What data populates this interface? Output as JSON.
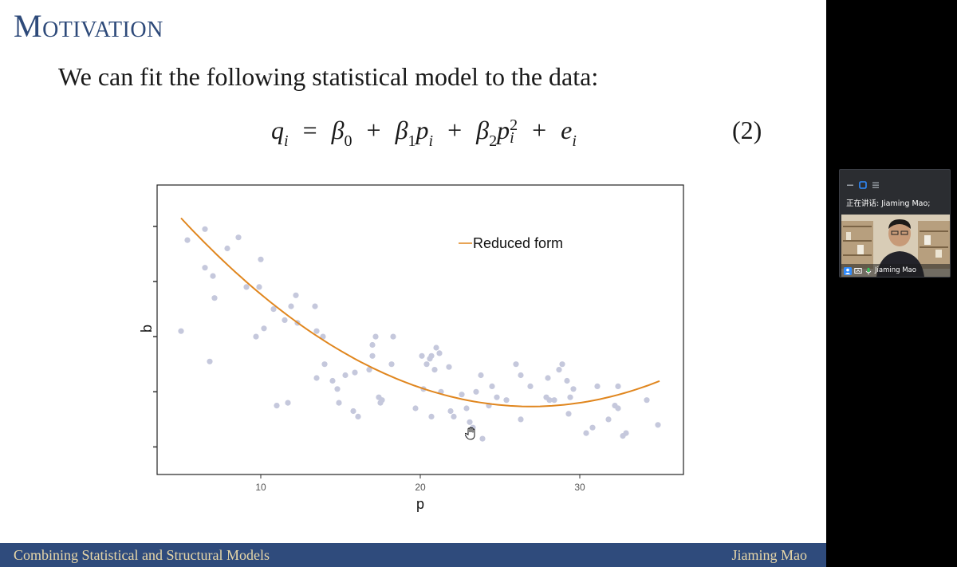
{
  "slide": {
    "title": "Motivation",
    "intro": "We can fit the following statistical model to the data:",
    "equation": {
      "lhs_var": "q",
      "lhs_sub": "i",
      "eq": "=",
      "b0": "β",
      "b0_sub": "0",
      "plus": "+",
      "b1": "β",
      "b1_sub": "1",
      "p1": "p",
      "p1_sub": "i",
      "b2": "β",
      "b2_sub": "2",
      "p2": "p",
      "p2_sub": "i",
      "p2_sup": "2",
      "e": "e",
      "e_sub": "i",
      "number": "(2)"
    },
    "footer": {
      "left": "Combining Statistical and Structural Models",
      "right": "Jiaming Mao"
    }
  },
  "chart_data": {
    "type": "scatter",
    "xlabel": "p",
    "ylabel": "q",
    "xlim": [
      3.5,
      36.5
    ],
    "ylim": [
      -1.0,
      9.5
    ],
    "x_ticks": [
      10,
      20,
      30
    ],
    "y_ticks": [
      0,
      2,
      4,
      6,
      8
    ],
    "y_tick_labels_visible": false,
    "grid": false,
    "legend": {
      "entries": [
        "Reduced form"
      ],
      "placement": "top-right"
    },
    "colors": {
      "points": "#c5c8dc",
      "fit": "#e0861e"
    },
    "points": [
      [
        5.0,
        4.2
      ],
      [
        5.4,
        7.5
      ],
      [
        6.5,
        7.9
      ],
      [
        6.8,
        3.1
      ],
      [
        6.5,
        6.5
      ],
      [
        7.0,
        6.2
      ],
      [
        7.1,
        5.4
      ],
      [
        7.9,
        7.2
      ],
      [
        8.6,
        7.6
      ],
      [
        9.1,
        5.8
      ],
      [
        9.7,
        4.0
      ],
      [
        9.9,
        5.8
      ],
      [
        10.0,
        6.8
      ],
      [
        10.2,
        4.3
      ],
      [
        10.8,
        5.0
      ],
      [
        11.0,
        1.5
      ],
      [
        11.5,
        4.6
      ],
      [
        11.7,
        1.6
      ],
      [
        11.9,
        5.1
      ],
      [
        12.2,
        5.5
      ],
      [
        12.3,
        4.5
      ],
      [
        13.4,
        5.1
      ],
      [
        13.5,
        4.2
      ],
      [
        13.5,
        2.5
      ],
      [
        13.9,
        4.0
      ],
      [
        14.0,
        3.0
      ],
      [
        14.5,
        2.4
      ],
      [
        14.8,
        2.1
      ],
      [
        14.9,
        1.6
      ],
      [
        15.3,
        2.6
      ],
      [
        15.8,
        1.3
      ],
      [
        15.9,
        2.7
      ],
      [
        16.1,
        1.1
      ],
      [
        16.8,
        2.8
      ],
      [
        17.0,
        3.3
      ],
      [
        17.0,
        3.7
      ],
      [
        17.2,
        4.0
      ],
      [
        17.4,
        1.8
      ],
      [
        17.5,
        1.6
      ],
      [
        17.6,
        1.7
      ],
      [
        18.2,
        3.0
      ],
      [
        18.3,
        4.0
      ],
      [
        19.7,
        1.4
      ],
      [
        20.1,
        3.3
      ],
      [
        20.2,
        2.1
      ],
      [
        20.4,
        3.0
      ],
      [
        20.6,
        3.2
      ],
      [
        20.7,
        1.1
      ],
      [
        20.7,
        3.3
      ],
      [
        20.9,
        2.8
      ],
      [
        21.0,
        3.6
      ],
      [
        21.2,
        3.4
      ],
      [
        21.3,
        2.0
      ],
      [
        21.8,
        2.9
      ],
      [
        21.9,
        1.3
      ],
      [
        22.1,
        1.1
      ],
      [
        22.6,
        1.9
      ],
      [
        22.9,
        1.4
      ],
      [
        23.0,
        0.4
      ],
      [
        23.1,
        0.9
      ],
      [
        23.3,
        0.7
      ],
      [
        23.5,
        2.0
      ],
      [
        23.8,
        2.6
      ],
      [
        23.9,
        0.3
      ],
      [
        24.3,
        1.5
      ],
      [
        24.5,
        2.2
      ],
      [
        24.8,
        1.8
      ],
      [
        25.4,
        1.7
      ],
      [
        26.0,
        3.0
      ],
      [
        26.3,
        2.6
      ],
      [
        26.3,
        1.0
      ],
      [
        26.9,
        2.2
      ],
      [
        27.9,
        1.8
      ],
      [
        28.0,
        2.5
      ],
      [
        28.1,
        1.7
      ],
      [
        28.4,
        1.7
      ],
      [
        28.7,
        2.8
      ],
      [
        28.9,
        3.0
      ],
      [
        29.2,
        2.4
      ],
      [
        29.3,
        1.2
      ],
      [
        29.4,
        1.8
      ],
      [
        29.6,
        2.1
      ],
      [
        30.4,
        0.5
      ],
      [
        30.8,
        0.7
      ],
      [
        31.1,
        2.2
      ],
      [
        31.8,
        1.0
      ],
      [
        32.2,
        1.5
      ],
      [
        32.4,
        1.4
      ],
      [
        32.4,
        2.2
      ],
      [
        32.7,
        0.4
      ],
      [
        32.9,
        0.5
      ],
      [
        34.2,
        1.7
      ],
      [
        34.9,
        0.8
      ]
    ],
    "fit_curve": {
      "b0": 11.77,
      "b1": -0.765,
      "b2": 0.0142,
      "x_range": [
        5.0,
        35.0
      ]
    }
  },
  "meeting": {
    "speaking_label": "正在讲话: Jiaming Mao;",
    "participant_name": "Jiaming Mao",
    "colors": {
      "panel": "#2b2d31",
      "accent": "#2e8bff"
    }
  }
}
